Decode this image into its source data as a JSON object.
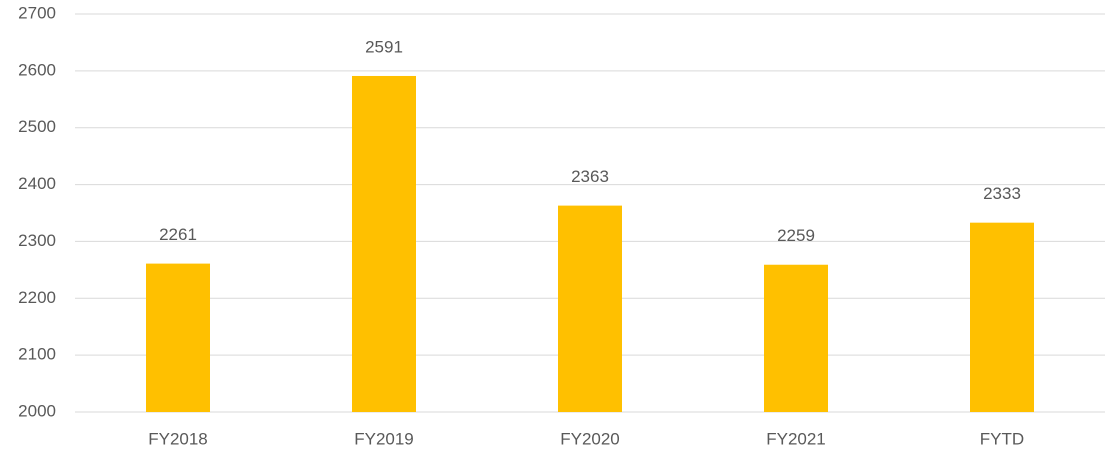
{
  "chart_data": {
    "type": "bar",
    "categories": [
      "FY2018",
      "FY2019",
      "FY2020",
      "FY2021",
      "FYTD"
    ],
    "values": [
      2261,
      2591,
      2363,
      2259,
      2333
    ],
    "color": "#ffc000",
    "ylim": [
      2000,
      2700
    ],
    "yticks": [
      2000,
      2100,
      2200,
      2300,
      2400,
      2500,
      2600,
      2700
    ],
    "grid": true,
    "data_labels": true
  }
}
